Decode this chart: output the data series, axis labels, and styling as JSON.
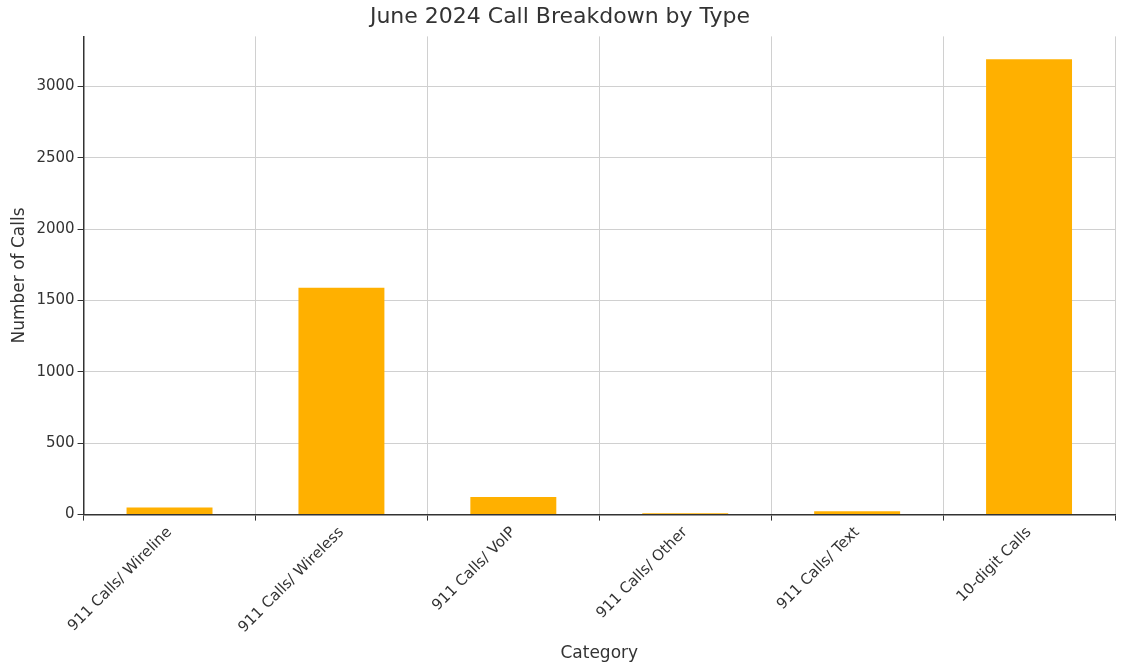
{
  "chart_data": {
    "type": "bar",
    "title": "June 2024 Call Breakdown by Type",
    "xlabel": "Category",
    "ylabel": "Number of Calls",
    "categories": [
      "911 Calls/ Wireline",
      "911 Calls/ Wireless",
      "911 Calls/ VoIP",
      "911 Calls/ Other",
      "911 Calls/ Text",
      "10-digit Calls"
    ],
    "values": [
      49,
      1590,
      123,
      10,
      24,
      3190
    ],
    "color": "#ffb000",
    "ylim": [
      0,
      3350
    ],
    "yticks": [
      0,
      500,
      1000,
      1500,
      2000,
      2500,
      3000
    ],
    "grid": true
  }
}
